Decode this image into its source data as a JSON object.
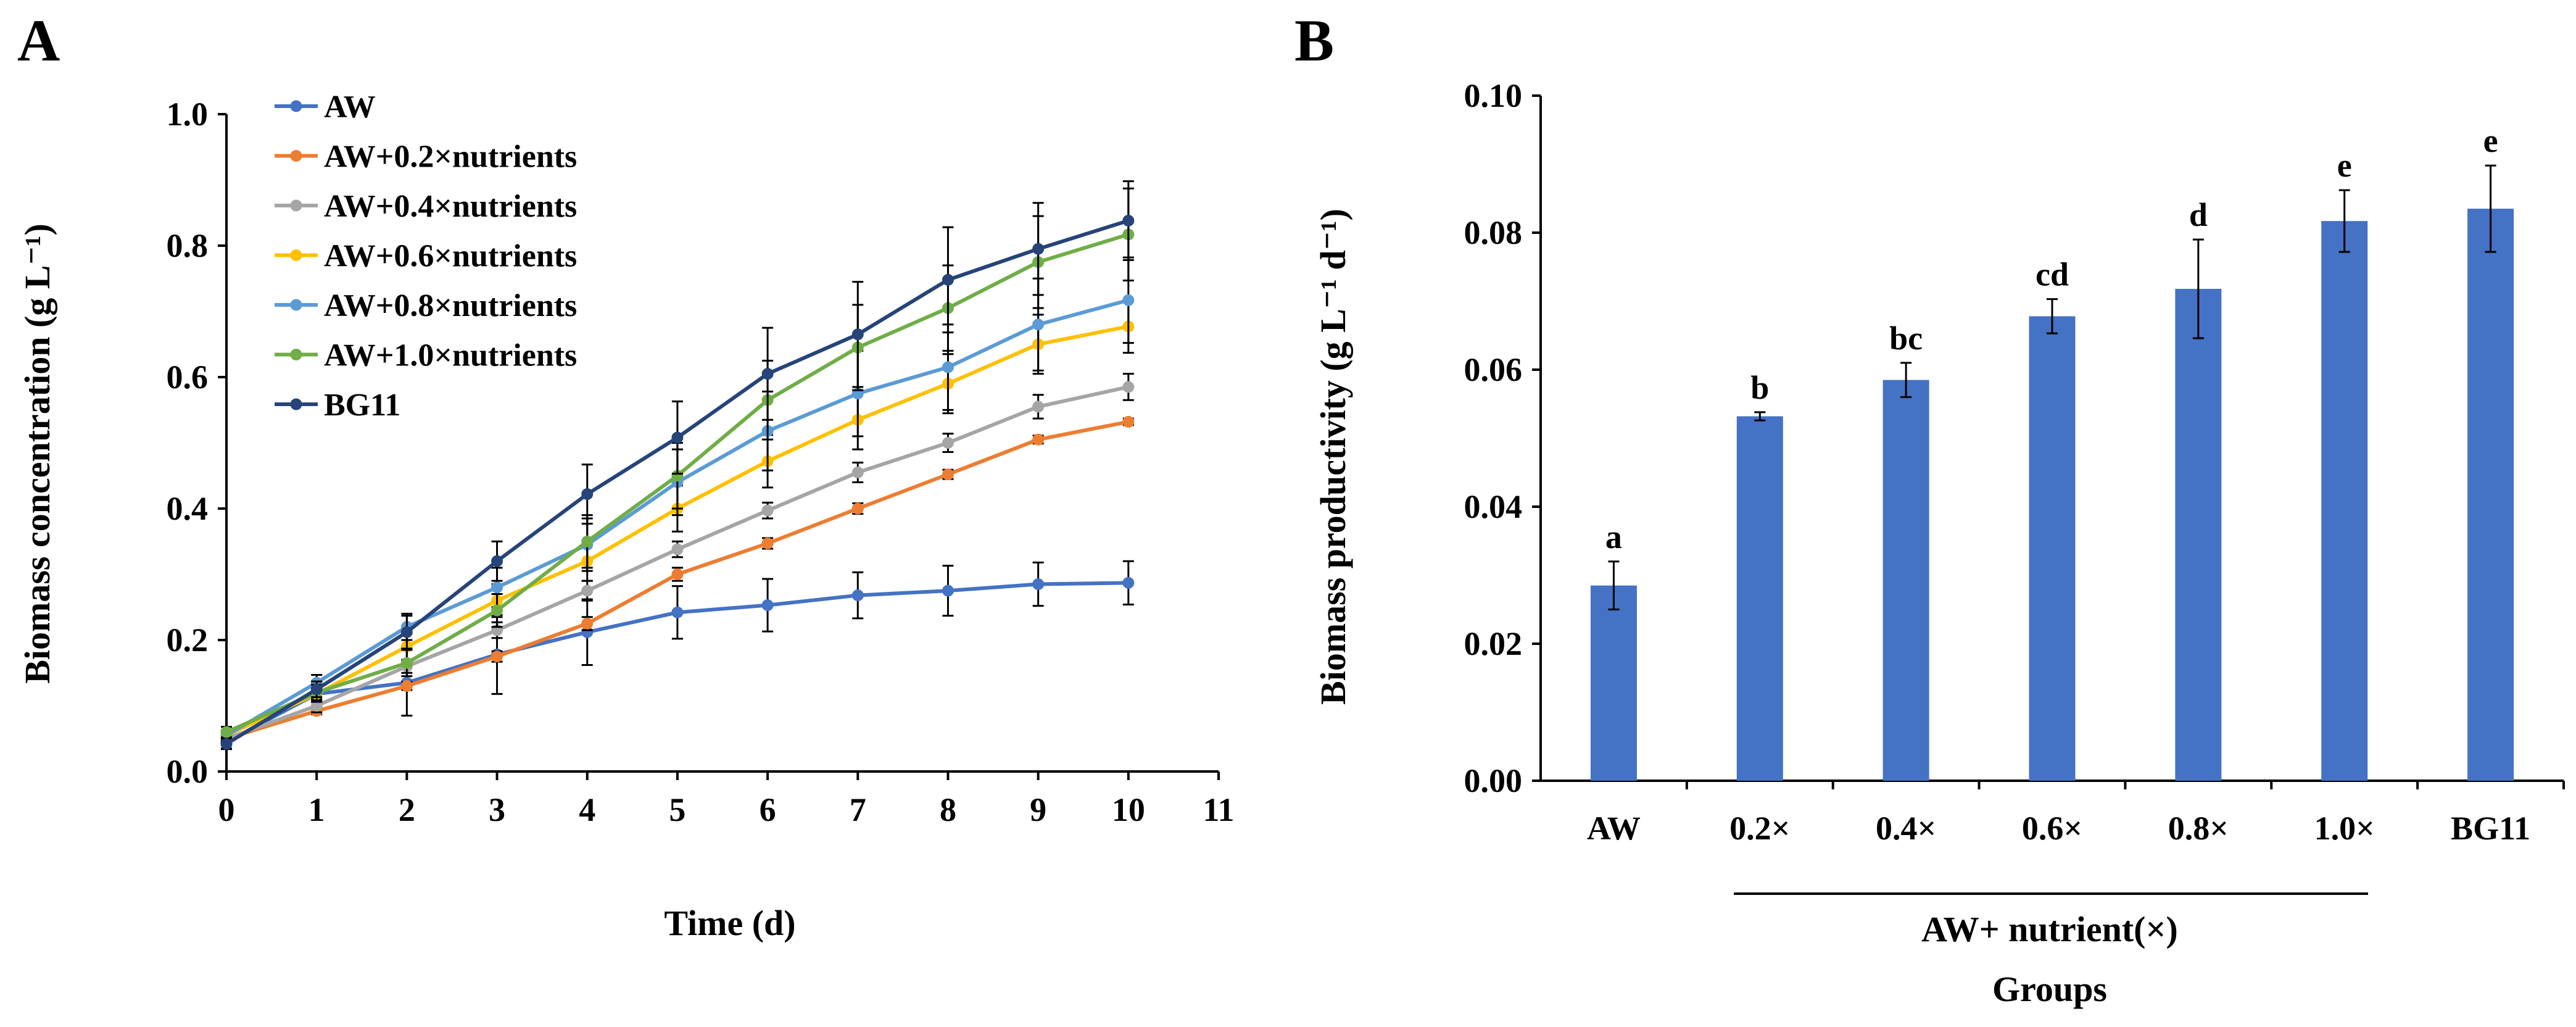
{
  "chart_data": [
    {
      "panel": "A",
      "type": "line",
      "xlabel": "Time (d)",
      "ylabel": "Biomass concentration (g L⁻¹)",
      "xlim": [
        0,
        11
      ],
      "ylim": [
        0,
        1.0
      ],
      "x_ticks": [
        "0",
        "1",
        "2",
        "3",
        "4",
        "5",
        "6",
        "7",
        "8",
        "9",
        "10",
        "11"
      ],
      "y_ticks": [
        "0.0",
        "0.2",
        "0.4",
        "0.6",
        "0.8",
        "1.0"
      ],
      "x": [
        0,
        1,
        2,
        3,
        4,
        5,
        6,
        7,
        8,
        9,
        10
      ],
      "series": [
        {
          "name": "AW",
          "color": "#4472c4",
          "values": [
            0.045,
            0.118,
            0.135,
            0.178,
            0.212,
            0.242,
            0.253,
            0.268,
            0.275,
            0.285,
            0.287
          ],
          "errors": [
            0.01,
            0.012,
            0.05,
            0.06,
            0.05,
            0.04,
            0.04,
            0.035,
            0.038,
            0.033,
            0.033
          ]
        },
        {
          "name": "AW+0.2×nutrients",
          "color": "#ed7d31",
          "values": [
            0.05,
            0.092,
            0.13,
            0.175,
            0.225,
            0.3,
            0.347,
            0.4,
            0.452,
            0.505,
            0.532
          ],
          "errors": [
            0.008,
            0.005,
            0.006,
            0.008,
            0.01,
            0.01,
            0.008,
            0.008,
            0.007,
            0.006,
            0.005
          ]
        },
        {
          "name": "AW+0.4×nutrients",
          "color": "#a5a5a5",
          "values": [
            0.05,
            0.1,
            0.16,
            0.215,
            0.275,
            0.338,
            0.397,
            0.455,
            0.5,
            0.555,
            0.585
          ],
          "errors": [
            0.008,
            0.01,
            0.01,
            0.012,
            0.015,
            0.012,
            0.012,
            0.015,
            0.014,
            0.018,
            0.02
          ]
        },
        {
          "name": "AW+0.6×nutrients",
          "color": "#ffc000",
          "values": [
            0.055,
            0.118,
            0.19,
            0.26,
            0.32,
            0.4,
            0.472,
            0.535,
            0.59,
            0.65,
            0.677
          ],
          "errors": [
            0.008,
            0.012,
            0.02,
            0.025,
            0.03,
            0.035,
            0.04,
            0.045,
            0.045,
            0.045,
            0.04
          ]
        },
        {
          "name": "AW+0.8×nutrients",
          "color": "#5b9bd5",
          "values": [
            0.055,
            0.135,
            0.22,
            0.28,
            0.345,
            0.44,
            0.518,
            0.575,
            0.615,
            0.68,
            0.717
          ],
          "errors": [
            0.008,
            0.012,
            0.02,
            0.03,
            0.04,
            0.05,
            0.06,
            0.065,
            0.065,
            0.07,
            0.065
          ]
        },
        {
          "name": "AW+1.0×nutrients",
          "color": "#70ad47",
          "values": [
            0.06,
            0.12,
            0.165,
            0.245,
            0.35,
            0.45,
            0.565,
            0.645,
            0.705,
            0.775,
            0.817
          ],
          "errors": [
            0.008,
            0.012,
            0.02,
            0.025,
            0.04,
            0.05,
            0.06,
            0.065,
            0.065,
            0.07,
            0.07
          ]
        },
        {
          "name": "BG11",
          "color": "#264478",
          "values": [
            0.042,
            0.125,
            0.212,
            0.32,
            0.422,
            0.508,
            0.605,
            0.665,
            0.748,
            0.795,
            0.838
          ],
          "errors": [
            0.008,
            0.012,
            0.025,
            0.03,
            0.045,
            0.055,
            0.07,
            0.08,
            0.08,
            0.07,
            0.06
          ]
        }
      ]
    },
    {
      "panel": "B",
      "type": "bar",
      "categories": [
        "AW",
        "0.2×",
        "0.4×",
        "0.6×",
        "0.8×",
        "1.0×",
        "BG11"
      ],
      "values": [
        0.0285,
        0.0532,
        0.0585,
        0.0678,
        0.0718,
        0.0817,
        0.0835
      ],
      "errors": [
        0.0035,
        0.0006,
        0.0025,
        0.0025,
        0.0072,
        0.0045,
        0.0063
      ],
      "significance": [
        "a",
        "b",
        "bc",
        "cd",
        "d",
        "e",
        "e"
      ],
      "color": "#4472c4",
      "ylabel": "Biomass productivity (g L⁻¹ d⁻¹)",
      "xlabel": "Groups",
      "group_label": "AW+ nutrient(×)",
      "ylim": [
        0,
        0.1
      ],
      "y_ticks": [
        "0.00",
        "0.02",
        "0.04",
        "0.06",
        "0.08",
        "0.10"
      ]
    }
  ]
}
